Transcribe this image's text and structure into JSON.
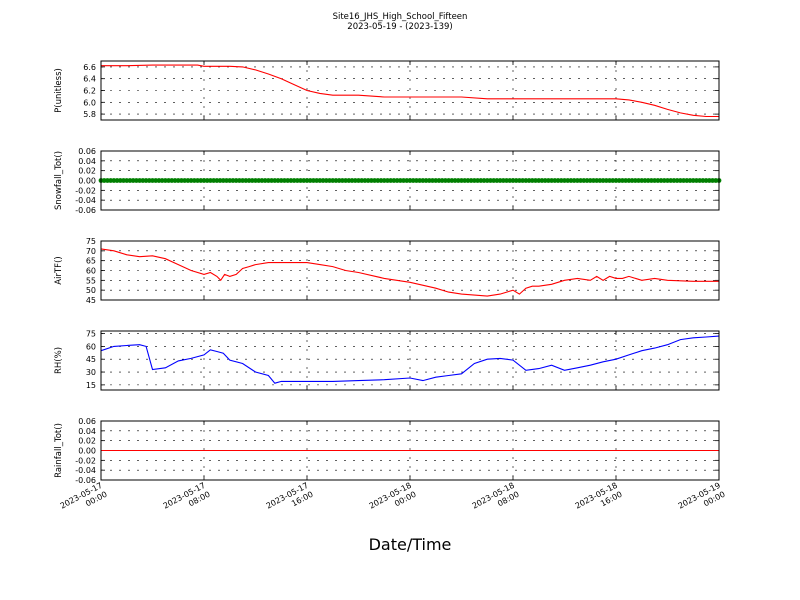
{
  "title": [
    "Site16_JHS_High_School_Fifteen",
    "2023-05-19 - (2023-139)"
  ],
  "xlabel": "Date/Time",
  "x_ticks": [
    {
      "line1": "2023-05-17",
      "line2": "00:00"
    },
    {
      "line1": "2023-05-17",
      "line2": "08:00"
    },
    {
      "line1": "2023-05-17",
      "line2": "16:00"
    },
    {
      "line1": "2023-05-18",
      "line2": "00:00"
    },
    {
      "line1": "2023-05-18",
      "line2": "08:00"
    },
    {
      "line1": "2023-05-18",
      "line2": "16:00"
    },
    {
      "line1": "2023-05-19",
      "line2": "00:00"
    }
  ],
  "chart_data": [
    {
      "type": "line",
      "ylabel": "P(unitless)",
      "ylim": [
        5.7,
        6.7
      ],
      "yticks": [
        "6.6",
        "6.4",
        "6.2",
        "6.0",
        "5.8"
      ],
      "ytick_values": [
        6.6,
        6.4,
        6.2,
        6.0,
        5.8
      ],
      "grid": true,
      "color": "#ff0000",
      "x_hours": [
        0,
        2,
        4,
        6,
        7.5,
        8,
        9,
        10,
        11,
        12,
        13,
        14,
        15,
        16,
        17,
        18,
        19,
        20,
        22,
        24,
        26,
        28,
        30,
        32,
        34,
        36,
        38,
        40,
        41,
        42,
        43,
        44,
        45,
        46,
        47,
        48
      ],
      "values": [
        6.62,
        6.62,
        6.63,
        6.63,
        6.63,
        6.61,
        6.61,
        6.61,
        6.6,
        6.55,
        6.48,
        6.4,
        6.3,
        6.2,
        6.15,
        6.12,
        6.12,
        6.12,
        6.09,
        6.09,
        6.09,
        6.09,
        6.06,
        6.06,
        6.06,
        6.06,
        6.06,
        6.06,
        6.04,
        6.0,
        5.95,
        5.88,
        5.82,
        5.78,
        5.76,
        5.76
      ]
    },
    {
      "type": "scatter",
      "ylabel": "Snowfall_Tot()",
      "ylim": [
        -0.06,
        0.06
      ],
      "yticks": [
        "0.06",
        "0.04",
        "0.02",
        "0.00",
        "-0.02",
        "-0.04",
        "-0.06"
      ],
      "ytick_values": [
        0.06,
        0.04,
        0.02,
        0.0,
        -0.02,
        -0.04,
        -0.06
      ],
      "grid": true,
      "color": "#007f00",
      "description_value": 0.0,
      "x_range_hours": [
        0,
        48
      ],
      "values": [
        0.0
      ]
    },
    {
      "type": "line",
      "ylabel": "AirTF()",
      "ylim": [
        45,
        75
      ],
      "yticks": [
        "75",
        "70",
        "65",
        "60",
        "55",
        "50",
        "45"
      ],
      "ytick_values": [
        75,
        70,
        65,
        60,
        55,
        50,
        45
      ],
      "grid": true,
      "color": "#ff0000",
      "x_hours": [
        0,
        1,
        2,
        3,
        4,
        5,
        6,
        7,
        8,
        8.5,
        9,
        9.3,
        9.6,
        10,
        10.5,
        11,
        11.5,
        12,
        13,
        14,
        15,
        16,
        17,
        18,
        19,
        20,
        22,
        24,
        26,
        27,
        28,
        29,
        30,
        31,
        32,
        32.5,
        33,
        33.5,
        34,
        35,
        36,
        37,
        38,
        38.5,
        39,
        39.5,
        40,
        40.5,
        41,
        42,
        43,
        44,
        46,
        48
      ],
      "values": [
        71,
        70,
        68,
        67,
        67.5,
        66,
        63,
        60,
        58,
        59,
        57,
        55,
        58,
        57,
        58,
        61,
        62,
        63,
        64,
        64,
        64,
        64,
        63,
        62,
        60,
        59,
        56,
        54,
        51,
        49,
        48,
        47.5,
        47,
        48,
        50,
        48,
        51,
        52,
        52,
        53,
        55,
        56,
        55,
        57,
        55,
        57,
        56,
        56,
        57,
        55,
        56,
        55,
        54.5,
        54.5
      ]
    },
    {
      "type": "line",
      "ylabel": "RH(%)",
      "ylim": [
        9,
        78
      ],
      "yticks": [
        "75",
        "60",
        "45",
        "30",
        "15"
      ],
      "ytick_values": [
        75,
        60,
        45,
        30,
        15
      ],
      "grid": true,
      "color": "#0000ff",
      "x_hours": [
        0,
        1,
        2,
        3,
        3.5,
        4,
        5,
        6,
        7,
        8,
        8.5,
        9,
        9.5,
        10,
        11,
        12,
        13,
        13.5,
        14,
        15,
        16,
        17,
        18,
        20,
        22,
        24,
        25,
        26,
        27,
        28,
        29,
        30,
        31,
        32,
        33,
        34,
        35,
        36,
        37,
        38,
        39,
        40,
        41,
        42,
        43,
        44,
        45,
        46,
        47,
        48
      ],
      "values": [
        55,
        60,
        61,
        62,
        60,
        33,
        35,
        43,
        46,
        50,
        56,
        54,
        52,
        44,
        40,
        30,
        26,
        17,
        19,
        19,
        19,
        19,
        19,
        20,
        21,
        23,
        20,
        24,
        26,
        28,
        40,
        45,
        46,
        44,
        32,
        34,
        38,
        32,
        35,
        38,
        42,
        45,
        50,
        55,
        58,
        62,
        68,
        70,
        71,
        72
      ]
    },
    {
      "type": "line",
      "ylabel": "Rainfall_Tot()",
      "ylim": [
        -0.06,
        0.06
      ],
      "yticks": [
        "0.06",
        "0.04",
        "0.02",
        "0.00",
        "-0.02",
        "-0.04",
        "-0.06"
      ],
      "ytick_values": [
        0.06,
        0.04,
        0.02,
        0.0,
        -0.02,
        -0.04,
        -0.06
      ],
      "grid": true,
      "color": "#ff0000",
      "x_hours": [
        0,
        48
      ],
      "values": [
        0.0,
        0.0
      ]
    }
  ]
}
